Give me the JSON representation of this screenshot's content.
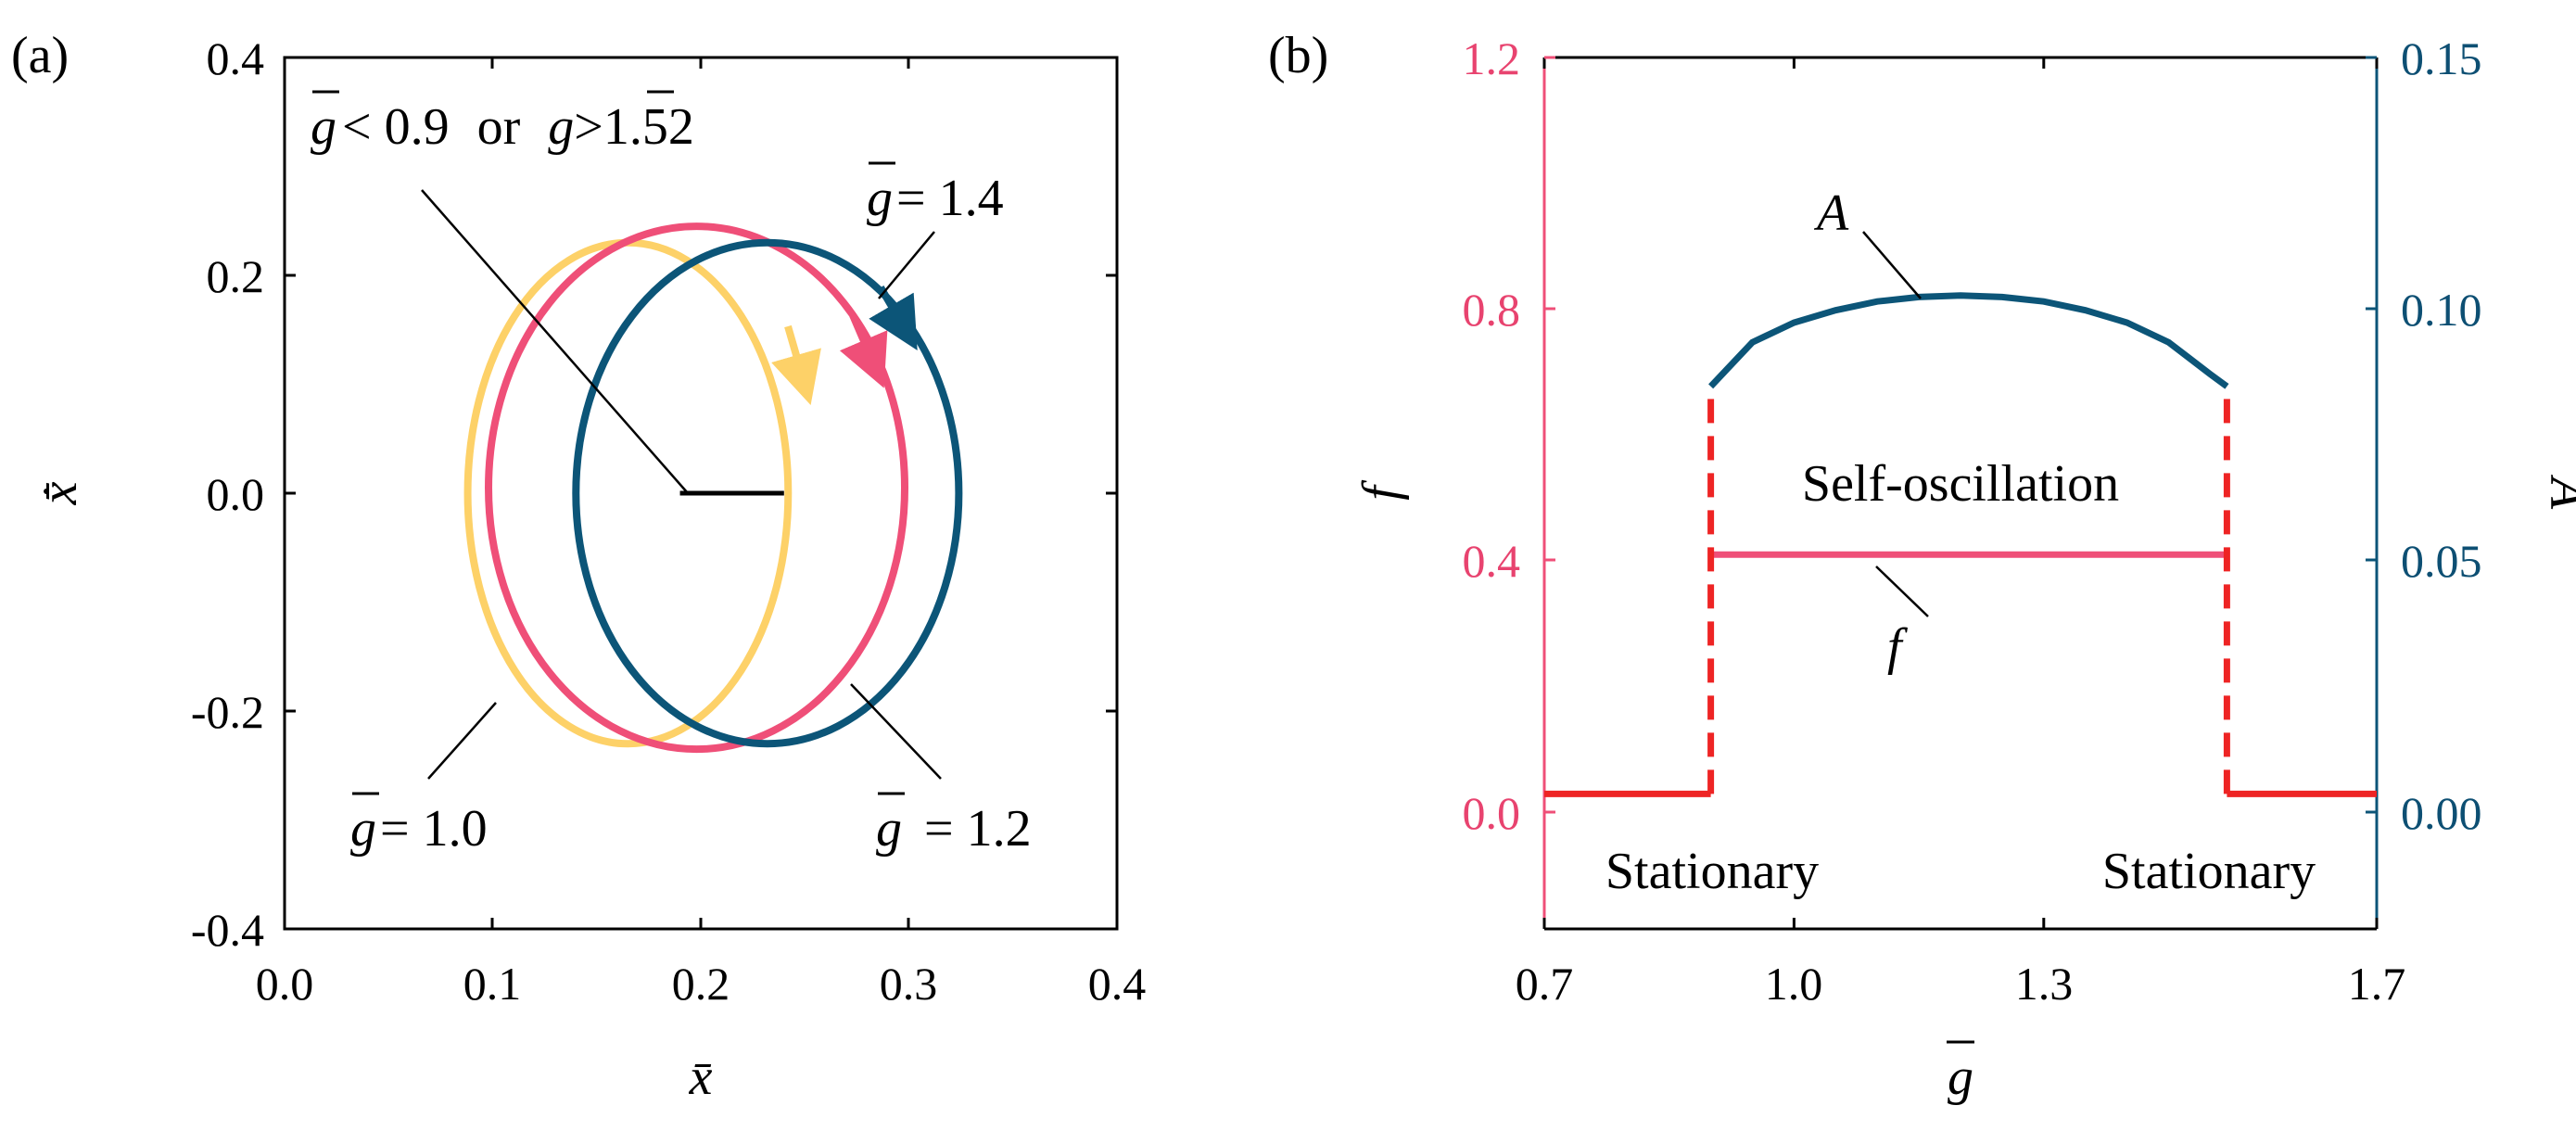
{
  "colors": {
    "yellow": "#fdd168",
    "pink": "#ef4f78",
    "blue": "#0c5578",
    "red": "#ee2424",
    "pink_axis": "#ef4f78",
    "blue_axis": "#0c5578"
  },
  "chart_data": [
    {
      "type": "scatter",
      "panel_label": "(a)",
      "xlabel": "x̄",
      "ylabel": "x̄̇",
      "xlim": [
        0.0,
        0.4
      ],
      "ylim": [
        -0.4,
        0.4
      ],
      "xticks": [
        "0.0",
        "0.1",
        "0.2",
        "0.3",
        "0.4"
      ],
      "yticks": [
        "-0.4",
        "-0.2",
        "0.0",
        "0.2",
        "0.4"
      ],
      "series": [
        {
          "name": "g = 1.0",
          "color_key": "yellow",
          "shape": "limit-cycle",
          "center": [
            0.165,
            0.0
          ],
          "semi_axes": [
            0.077,
            0.23
          ],
          "label": {
            "g": "g",
            "rest": "= 1.0"
          }
        },
        {
          "name": "g = 1.2",
          "color_key": "pink",
          "shape": "limit-cycle",
          "center": [
            0.198,
            0.005
          ],
          "semi_axes": [
            0.1,
            0.24
          ],
          "label": {
            "g": "g",
            "rest": " = 1.2"
          }
        },
        {
          "name": "g = 1.4",
          "color_key": "blue",
          "shape": "limit-cycle",
          "center": [
            0.232,
            0.0
          ],
          "semi_axes": [
            0.092,
            0.23
          ],
          "label": {
            "g": "g",
            "rest": "= 1.4"
          }
        },
        {
          "name": "g < 0.9 or g > 1.52",
          "color_key": "black",
          "shape": "fixed-point",
          "x_range": [
            0.19,
            0.24
          ],
          "y": 0.0,
          "label": {
            "g1": "g",
            "lt": "< 0.9",
            "or": "or",
            "g2": "g",
            "gt": ">1.52"
          }
        }
      ]
    },
    {
      "type": "line",
      "panel_label": "(b)",
      "xlabel": "g",
      "ylabel_left": "f",
      "ylabel_right": "A",
      "xlim": [
        0.7,
        1.7
      ],
      "ylim_left": [
        -0.22,
        1.2
      ],
      "ylim_right": [
        -0.0275,
        0.15
      ],
      "xticks": [
        "0.7",
        "1.0",
        "1.3",
        "1.7"
      ],
      "xtick_values": [
        0.7,
        1.0,
        1.3,
        1.7
      ],
      "yticks_left": [
        "0.0",
        "0.4",
        "0.8",
        "1.2"
      ],
      "yticks_right": [
        "0.00",
        "0.05",
        "0.10",
        "0.15"
      ],
      "series": [
        {
          "name": "f",
          "axis": "left",
          "color_key": "pink",
          "x": [
            0.9,
            1.2,
            1.52
          ],
          "y": [
            0.39,
            0.39,
            0.39
          ],
          "label": "f"
        },
        {
          "name": "A",
          "axis": "right",
          "color_key": "blue",
          "x": [
            0.9,
            0.95,
            1.0,
            1.05,
            1.1,
            1.15,
            1.2,
            1.25,
            1.3,
            1.35,
            1.4,
            1.45,
            1.5,
            1.52
          ],
          "y": [
            0.083,
            0.092,
            0.096,
            0.0985,
            0.1003,
            0.1012,
            0.1015,
            0.1012,
            0.1003,
            0.0985,
            0.096,
            0.092,
            0.0855,
            0.083
          ],
          "label": "A"
        },
        {
          "name": "stationary-left",
          "axis": "left",
          "color_key": "red",
          "x": [
            0.7,
            0.9
          ],
          "y": [
            0.0,
            0.0
          ]
        },
        {
          "name": "stationary-right",
          "axis": "left",
          "color_key": "red",
          "x": [
            1.52,
            1.7
          ],
          "y": [
            0.0,
            0.0
          ]
        },
        {
          "name": "jump-left",
          "axis": "left",
          "color_key": "red",
          "dashed": true,
          "x": [
            0.9,
            0.9
          ],
          "y": [
            0.0,
            0.664
          ]
        },
        {
          "name": "jump-right",
          "axis": "left",
          "color_key": "red",
          "dashed": true,
          "x": [
            1.52,
            1.52
          ],
          "y": [
            0.0,
            0.664
          ]
        }
      ],
      "annotations": {
        "self_oscillation": "Self-oscillation",
        "stationary_left": "Stationary",
        "stationary_right": "Stationary"
      }
    }
  ]
}
